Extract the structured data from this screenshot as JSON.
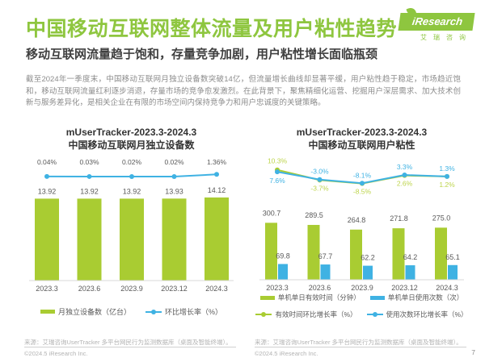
{
  "page": {
    "title": "中国移动互联网整体流量及用户粘性趋势",
    "subtitle": "移动互联网流量趋于饱和，存量竞争加剧，用户粘性增长面临瓶颈",
    "paragraph": "截至2024年一季度末，中国移动互联网月独立设备数突破14亿，但流量增长曲线却显著平缓，用户粘性趋于稳定，市场趋近饱和，移动互联网流量红利逐步消退，存量市场的竞争愈发激烈。在此背景下，聚焦精细化运营、挖掘用户深层需求、加大技术创新与服务差异化，是相关企业在有限的市场空间内保持竞争力和用户忠诚度的关键策略。",
    "page_number": "7"
  },
  "logo": {
    "brand": "iResearch",
    "brand_cn": "艾瑞咨询"
  },
  "footer": {
    "source": "来源：艾瑞咨询UserTracker 多平台网民行为监测数据库（桌面及智能终端）。",
    "copyright": "©2024.5 iResearch Inc."
  },
  "colors": {
    "green": "#a9cc32",
    "blue": "#3fb2e3",
    "green_label": "#bdd44c",
    "title_green": "#8ec63f",
    "gray_text": "#595959"
  },
  "chart_data": [
    {
      "type": "bar",
      "title_line1": "mUserTracker-2023.3-2024.3",
      "title_line2": "中国移动互联网月独立设备数",
      "categories": [
        "2023.3",
        "2023.6",
        "2023.9",
        "2023.12",
        "2024.3"
      ],
      "series": [
        {
          "name": "月独立设备数（亿台）",
          "type": "bar",
          "color": "green",
          "values": [
            13.92,
            13.92,
            13.92,
            13.93,
            14.12
          ],
          "labels": [
            "13.92",
            "13.92",
            "13.92",
            "13.93",
            "14.12"
          ]
        },
        {
          "name": "环比增长率（%）",
          "type": "line",
          "color": "blue",
          "values": [
            0.04,
            0.03,
            0.02,
            0.02,
            1.36
          ],
          "labels": [
            "0.04%",
            "0.03%",
            "0.02%",
            "0.02%",
            "1.36%"
          ]
        }
      ],
      "legend_position": "bottom",
      "grid": false
    },
    {
      "type": "bar",
      "title_line1": "mUserTracker-2023.3-2024.3",
      "title_line2": "中国移动互联网用户粘性",
      "categories": [
        "2023.3",
        "2023.6",
        "2023.9",
        "2023.12",
        "2024.3"
      ],
      "series": [
        {
          "name": "单机单日有效时间（分钟）",
          "type": "bar",
          "color": "green",
          "values": [
            300.7,
            289.5,
            264.8,
            271.8,
            275.0
          ],
          "labels": [
            "300.7",
            "289.5",
            "264.8",
            "271.8",
            "275.0"
          ]
        },
        {
          "name": "单机单日使用次数（次）",
          "type": "bar",
          "color": "blue",
          "values": [
            69.8,
            67.7,
            62.2,
            64.2,
            65.1
          ],
          "labels": [
            "69.8",
            "67.7",
            "62.2",
            "64.2",
            "65.1"
          ]
        },
        {
          "name": "有效时间环比增长率（%）",
          "type": "line",
          "color": "green",
          "values": [
            10.3,
            -3.7,
            -8.5,
            2.6,
            1.2
          ],
          "labels": [
            "10.3%",
            "-3.7%",
            "-8.5%",
            "2.6%",
            "1.2%"
          ]
        },
        {
          "name": "使用次数环比增长率（%）",
          "type": "line",
          "color": "blue",
          "values": [
            7.6,
            -3.0,
            -8.1,
            3.3,
            1.3
          ],
          "labels": [
            "7.6%",
            "-3.0%",
            "-8.1%",
            "3.3%",
            "1.3%"
          ]
        }
      ],
      "legend_position": "bottom",
      "grid": false
    }
  ]
}
